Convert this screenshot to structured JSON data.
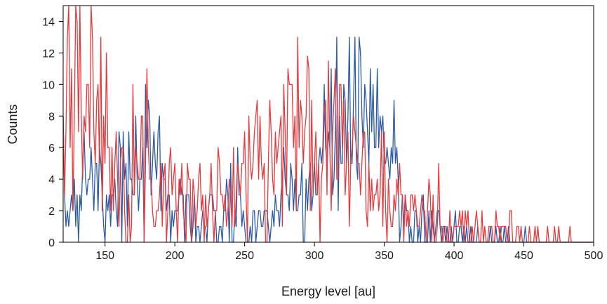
{
  "chart_data": {
    "type": "line",
    "title": "",
    "xlabel": "Energy level [au]",
    "ylabel": "Counts",
    "xlim": [
      120,
      500
    ],
    "ylim": [
      0,
      15
    ],
    "xticks": [
      150,
      200,
      250,
      300,
      350,
      400,
      450,
      500
    ],
    "yticks": [
      0,
      2,
      4,
      6,
      8,
      10,
      12,
      14
    ],
    "grid": false,
    "legend": "none",
    "series": [
      {
        "color": "#2b5aa6",
        "sample_step": 10,
        "x": [
          120,
          130,
          140,
          150,
          160,
          170,
          180,
          190,
          200,
          210,
          220,
          230,
          240,
          250,
          260,
          270,
          280,
          290,
          300,
          310,
          320,
          330,
          340,
          350,
          360,
          370,
          380,
          390,
          400,
          410,
          420,
          430,
          440,
          450,
          460,
          470,
          480,
          490,
          500
        ],
        "y": [
          2,
          3,
          5,
          3,
          4,
          3,
          4,
          4,
          3,
          2,
          1,
          1,
          2,
          1,
          1,
          2,
          2,
          3,
          4,
          6,
          7,
          7,
          7,
          6,
          4,
          1,
          1,
          1,
          0.5,
          0.5,
          0.3,
          0.2,
          0.2,
          0.1,
          0,
          0,
          0,
          0,
          0
        ],
        "peaks": [
          {
            "x": 135,
            "y": 7
          },
          {
            "x": 160,
            "y": 7
          },
          {
            "x": 185,
            "y": 7
          },
          {
            "x": 325,
            "y": 13
          },
          {
            "x": 345,
            "y": 11
          }
        ]
      },
      {
        "color": "#e8393c",
        "sample_step": 10,
        "x": [
          120,
          130,
          140,
          150,
          160,
          170,
          180,
          190,
          200,
          210,
          220,
          230,
          240,
          250,
          260,
          270,
          280,
          290,
          300,
          310,
          320,
          330,
          340,
          350,
          360,
          370,
          380,
          390,
          400,
          410,
          420,
          430,
          440,
          450,
          460,
          470,
          480,
          490,
          500
        ],
        "y": [
          10,
          10,
          8,
          7,
          5.5,
          5,
          4,
          4,
          3.5,
          2.8,
          2.5,
          2.5,
          3,
          4,
          5,
          6,
          7,
          7.5,
          7,
          7,
          6.5,
          5,
          3.5,
          3,
          2,
          2,
          1.5,
          1,
          1,
          0.8,
          0.6,
          0.5,
          0.4,
          0.3,
          0.2,
          0.1,
          0.1,
          0.1,
          0
        ],
        "peaks": [
          {
            "x": 123,
            "y": 12.9
          },
          {
            "x": 295,
            "y": 11.8
          },
          {
            "x": 310,
            "y": 11.5
          }
        ]
      }
    ]
  }
}
